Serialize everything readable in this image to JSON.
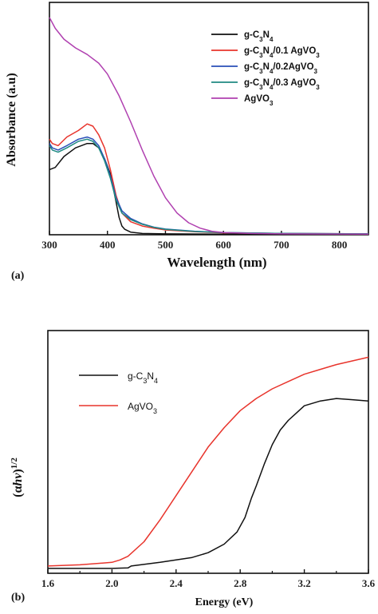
{
  "chart_data": [
    {
      "panel": "(a)",
      "type": "line",
      "xlabel": "Wavelength (nm)",
      "ylabel": "Absorbance (a.u)",
      "xlim": [
        300,
        850
      ],
      "ylim": [
        0,
        1.0
      ],
      "xticks": [
        "300",
        "400",
        "500",
        "600",
        "700",
        "800"
      ],
      "legend_position": "top-right",
      "series": [
        {
          "name": "g-C3N4",
          "label_parts": [
            "g-C",
            "3",
            "N",
            "4",
            ""
          ],
          "color": "#111111",
          "x": [
            300,
            310,
            325,
            345,
            365,
            375,
            385,
            395,
            405,
            415,
            420,
            425,
            430,
            440,
            460,
            500,
            600,
            700,
            850
          ],
          "y": [
            0.3,
            0.31,
            0.36,
            0.4,
            0.42,
            0.42,
            0.4,
            0.35,
            0.28,
            0.15,
            0.08,
            0.04,
            0.025,
            0.012,
            0.006,
            0.004,
            0.003,
            0.003,
            0.003
          ]
        },
        {
          "name": "g-C3N4/0.1 AgVO3",
          "label_parts": [
            "g-C",
            "3",
            "N",
            "4",
            "/0.1 AgVO",
            "3",
            ""
          ],
          "color": "#e8342c",
          "x": [
            300,
            305,
            315,
            330,
            350,
            365,
            375,
            385,
            395,
            405,
            415,
            425,
            440,
            460,
            480,
            500,
            550,
            600,
            700,
            850
          ],
          "y": [
            0.44,
            0.42,
            0.41,
            0.45,
            0.48,
            0.51,
            0.5,
            0.46,
            0.4,
            0.3,
            0.18,
            0.1,
            0.06,
            0.04,
            0.03,
            0.022,
            0.014,
            0.009,
            0.006,
            0.004
          ]
        },
        {
          "name": "g-C3N4/0.2AgVO3",
          "label_parts": [
            "g-C",
            "3",
            "N",
            "4",
            "/0.2AgVO",
            "3",
            ""
          ],
          "color": "#2a4fb8",
          "x": [
            300,
            305,
            315,
            330,
            350,
            365,
            375,
            385,
            395,
            405,
            415,
            425,
            440,
            460,
            480,
            500,
            550,
            600,
            700,
            850
          ],
          "y": [
            0.42,
            0.4,
            0.39,
            0.41,
            0.44,
            0.45,
            0.44,
            0.41,
            0.35,
            0.27,
            0.17,
            0.11,
            0.075,
            0.05,
            0.035,
            0.026,
            0.016,
            0.01,
            0.006,
            0.004
          ]
        },
        {
          "name": "g-C3N4/0.3 AgVO3",
          "label_parts": [
            "g-C",
            "3",
            "N",
            "4",
            "/0.3 AgVO",
            "3",
            ""
          ],
          "color": "#1f8a82",
          "x": [
            300,
            305,
            315,
            330,
            350,
            365,
            375,
            385,
            395,
            405,
            415,
            425,
            440,
            460,
            480,
            500,
            550,
            600,
            700,
            850
          ],
          "y": [
            0.41,
            0.39,
            0.38,
            0.4,
            0.43,
            0.44,
            0.43,
            0.4,
            0.34,
            0.26,
            0.16,
            0.1,
            0.07,
            0.048,
            0.034,
            0.025,
            0.015,
            0.01,
            0.006,
            0.004
          ]
        },
        {
          "name": "AgVO3",
          "label_parts": [
            "AgVO",
            "3",
            ""
          ],
          "color": "#b040b0",
          "x": [
            300,
            310,
            325,
            345,
            365,
            385,
            400,
            420,
            440,
            460,
            480,
            500,
            520,
            540,
            560,
            580,
            600,
            650,
            700,
            850
          ],
          "y": [
            1.0,
            0.95,
            0.9,
            0.86,
            0.83,
            0.79,
            0.74,
            0.64,
            0.52,
            0.39,
            0.27,
            0.17,
            0.1,
            0.055,
            0.03,
            0.016,
            0.01,
            0.006,
            0.004,
            0.003
          ]
        }
      ]
    },
    {
      "panel": "(b)",
      "type": "line",
      "xlabel": "Energy (eV)",
      "ylabel": "(αhv)1/2",
      "xlim": [
        1.6,
        3.6
      ],
      "ylim": [
        0,
        1.0
      ],
      "xticks": [
        "1.6",
        "2.0",
        "2.4",
        "2.8",
        "3.2",
        "3.6"
      ],
      "legend_position": "top-left",
      "series": [
        {
          "name": "g-C3N4",
          "label_parts": [
            "g-C",
            "3",
            "N",
            "4",
            ""
          ],
          "color": "#111111",
          "x": [
            1.6,
            1.8,
            2.0,
            2.1,
            2.12,
            2.3,
            2.5,
            2.6,
            2.7,
            2.78,
            2.83,
            2.87,
            2.9,
            2.95,
            3.0,
            3.05,
            3.1,
            3.15,
            3.2,
            3.3,
            3.4,
            3.5,
            3.6
          ],
          "y": [
            0.02,
            0.02,
            0.02,
            0.022,
            0.03,
            0.045,
            0.065,
            0.085,
            0.12,
            0.17,
            0.23,
            0.31,
            0.36,
            0.45,
            0.53,
            0.59,
            0.63,
            0.66,
            0.69,
            0.71,
            0.72,
            0.715,
            0.71
          ]
        },
        {
          "name": "AgVO3",
          "label_parts": [
            "AgVO",
            "3",
            ""
          ],
          "color": "#e8342c",
          "x": [
            1.6,
            1.8,
            2.0,
            2.05,
            2.1,
            2.2,
            2.3,
            2.4,
            2.5,
            2.6,
            2.7,
            2.8,
            2.9,
            3.0,
            3.1,
            3.2,
            3.3,
            3.4,
            3.5,
            3.6
          ],
          "y": [
            0.03,
            0.035,
            0.045,
            0.055,
            0.07,
            0.13,
            0.22,
            0.32,
            0.42,
            0.52,
            0.6,
            0.67,
            0.72,
            0.76,
            0.79,
            0.82,
            0.84,
            0.86,
            0.875,
            0.89
          ]
        }
      ]
    }
  ]
}
